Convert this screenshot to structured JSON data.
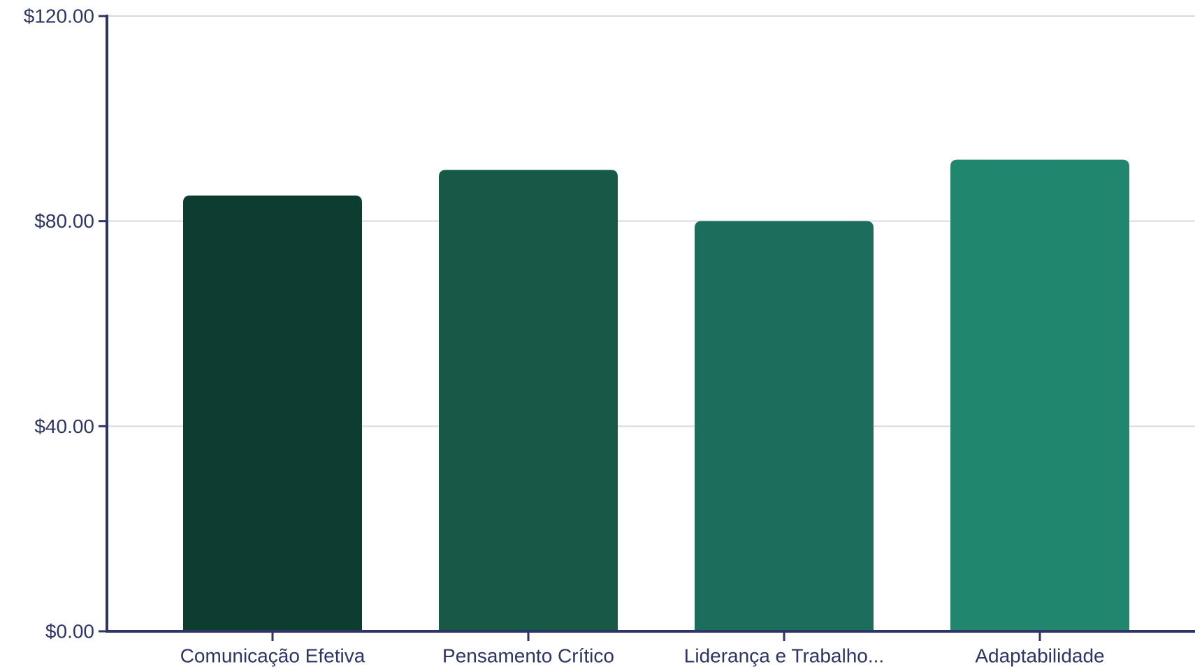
{
  "chart_data": {
    "type": "bar",
    "categories": [
      "Comunicação Efetiva",
      "Pensamento Crítico",
      "Liderança e Trabalho...",
      "Adaptabilidade"
    ],
    "values": [
      85,
      90,
      80,
      92
    ],
    "title": "",
    "xlabel": "",
    "ylabel": "",
    "ylim": [
      0,
      120
    ],
    "yticks": [
      {
        "value": 0,
        "label": "$0.00"
      },
      {
        "value": 40,
        "label": "$40.00"
      },
      {
        "value": 80,
        "label": "$80.00"
      },
      {
        "value": 120,
        "label": "$120.00"
      }
    ],
    "grid": true,
    "legend": "none",
    "colors": {
      "bars": [
        "#0d3d31",
        "#175847",
        "#1c6d5b",
        "#20876e"
      ],
      "axis": "#2e3565",
      "grid": "#d9d9e3",
      "text": "#2e3565"
    }
  }
}
